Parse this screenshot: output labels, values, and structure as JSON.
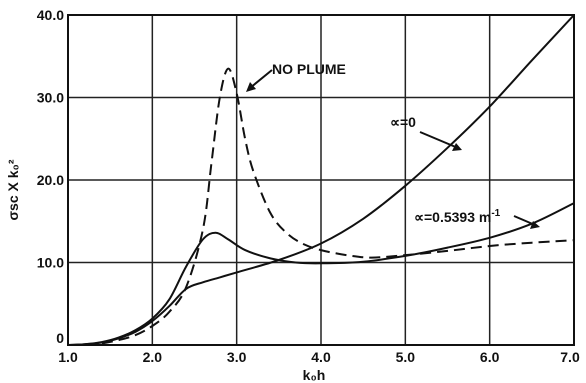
{
  "chart_data": {
    "type": "line",
    "xlabel": "k₀h",
    "ylabel": "σsc X k₀²",
    "xlim": [
      1.0,
      7.0
    ],
    "ylim": [
      0,
      40.0
    ],
    "x_ticks": [
      "1.0",
      "2.0",
      "3.0",
      "4.0",
      "5.0",
      "6.0",
      "7.0"
    ],
    "y_ticks": [
      "0",
      "10.0",
      "20.0",
      "30.0",
      "40.0"
    ],
    "grid": true,
    "series": [
      {
        "name": "NO PLUME",
        "style": "dashed",
        "x": [
          1.0,
          1.2,
          1.4,
          1.6,
          1.8,
          2.0,
          2.2,
          2.4,
          2.6,
          2.7,
          2.8,
          2.9,
          3.0,
          3.1,
          3.2,
          3.4,
          3.6,
          3.8,
          4.0,
          4.3,
          4.6,
          5.0,
          5.5,
          6.0,
          6.5,
          7.0
        ],
        "y": [
          0.0,
          0.05,
          0.2,
          0.6,
          1.2,
          2.3,
          4.0,
          7.0,
          14.0,
          22.0,
          30.0,
          33.5,
          30.5,
          25.0,
          21.0,
          16.0,
          13.5,
          12.2,
          11.5,
          10.9,
          10.6,
          10.9,
          11.4,
          12.0,
          12.4,
          12.7
        ]
      },
      {
        "name": "∝=0",
        "style": "solid",
        "x": [
          1.0,
          1.2,
          1.4,
          1.6,
          1.8,
          2.0,
          2.2,
          2.4,
          2.6,
          2.8,
          3.0,
          3.5,
          4.0,
          4.5,
          5.0,
          5.5,
          6.0,
          6.5,
          7.0
        ],
        "y": [
          0.0,
          0.1,
          0.3,
          0.8,
          1.6,
          2.9,
          4.7,
          6.8,
          7.6,
          8.2,
          8.8,
          10.3,
          12.3,
          15.3,
          19.3,
          23.9,
          28.9,
          34.5,
          40.0
        ]
      },
      {
        "name": "∝=0.5393 m⁻¹",
        "style": "solid",
        "x": [
          1.0,
          1.2,
          1.4,
          1.6,
          1.8,
          2.0,
          2.2,
          2.4,
          2.6,
          2.75,
          2.9,
          3.1,
          3.4,
          3.7,
          4.0,
          4.5,
          5.0,
          5.5,
          6.0,
          6.5,
          7.0
        ],
        "y": [
          0.0,
          0.1,
          0.35,
          0.9,
          1.8,
          3.2,
          5.5,
          9.5,
          12.8,
          13.6,
          12.8,
          11.5,
          10.5,
          10.0,
          9.9,
          10.1,
          10.8,
          11.8,
          13.0,
          14.7,
          17.2
        ]
      }
    ],
    "annotations": [
      "NO PLUME",
      "∝=0",
      "∝=0.5393 m"
    ]
  }
}
